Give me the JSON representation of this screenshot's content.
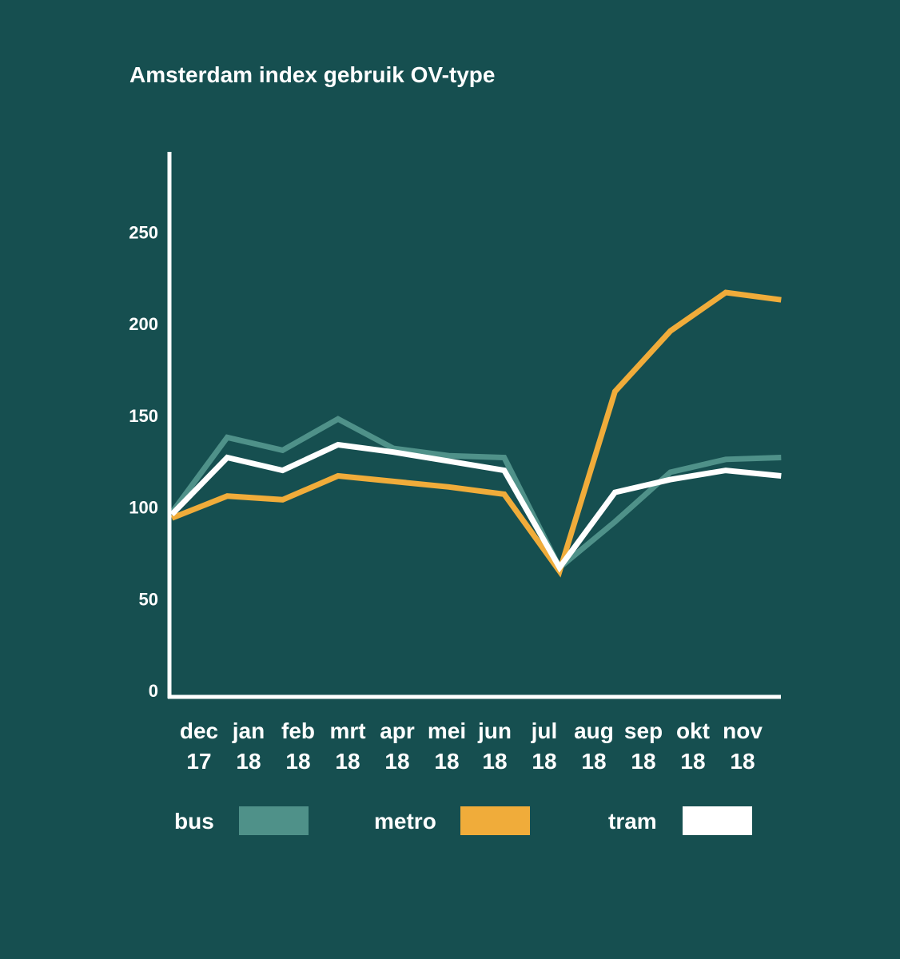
{
  "chart_data": {
    "type": "line",
    "title": "Amsterdam index gebruik OV-type",
    "xlabel": "",
    "ylabel": "",
    "ylim": [
      0,
      295
    ],
    "yticks": [
      0,
      50,
      100,
      150,
      200,
      250
    ],
    "categories": [
      [
        "dec",
        "17"
      ],
      [
        "jan",
        "18"
      ],
      [
        "feb",
        "18"
      ],
      [
        "mrt",
        "18"
      ],
      [
        "apr",
        "18"
      ],
      [
        "mei",
        "18"
      ],
      [
        "jun",
        "18"
      ],
      [
        "jul",
        "18"
      ],
      [
        "aug",
        "18"
      ],
      [
        "sep",
        "18"
      ],
      [
        "okt",
        "18"
      ],
      [
        "nov",
        "18"
      ]
    ],
    "series": [
      {
        "name": "bus",
        "color": "#4f9189",
        "values": [
          97,
          138,
          131,
          148,
          132,
          128,
          127,
          67,
          92,
          119,
          126,
          127
        ]
      },
      {
        "name": "metro",
        "color": "#f0ac3a",
        "values": [
          94,
          106,
          104,
          117,
          114,
          111,
          107,
          65,
          163,
          196,
          217,
          213
        ]
      },
      {
        "name": "tram",
        "color": "#ffffff",
        "values": [
          96,
          127,
          120,
          134,
          130,
          125,
          120,
          67,
          108,
          115,
          120,
          117
        ]
      }
    ],
    "grid": false,
    "legend_position": "bottom"
  }
}
